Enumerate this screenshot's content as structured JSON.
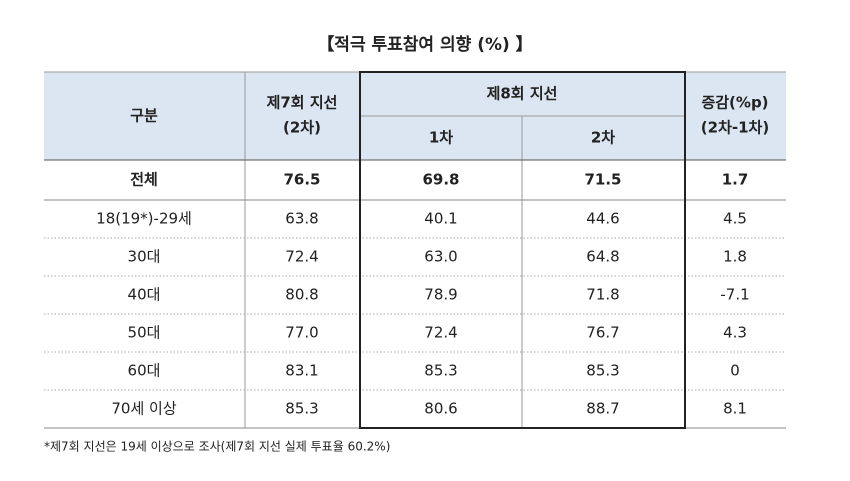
{
  "title": "【적극 투표참여 의향 (%) 】",
  "table": {
    "header": {
      "category": "구분",
      "local7": [
        "제7회 지선",
        "(2차)"
      ],
      "local8": "제8회 지선",
      "local8_sub": [
        "1차",
        "2차"
      ],
      "change": [
        "증감(%p)",
        "(2차-1차)"
      ]
    },
    "rows": [
      [
        "전체",
        "76.5",
        "69.8",
        "71.5",
        "1.7"
      ],
      [
        "18(19*)-29세",
        "63.8",
        "40.1",
        "44.6",
        "4.5"
      ],
      [
        "30대",
        "72.4",
        "63.0",
        "64.8",
        "1.8"
      ],
      [
        "40대",
        "80.8",
        "78.9",
        "71.8",
        "-7.1"
      ],
      [
        "50대",
        "77.0",
        "72.4",
        "76.7",
        "4.3"
      ],
      [
        "60대",
        "83.1",
        "85.3",
        "85.3",
        "0"
      ],
      [
        "70세 이상",
        "85.3",
        "80.6",
        "88.7",
        "8.1"
      ]
    ]
  },
  "footnote": "*제7회 지선은 19세 이상으로 조사(제7회 지선 실제 투표율 60.2%)"
}
